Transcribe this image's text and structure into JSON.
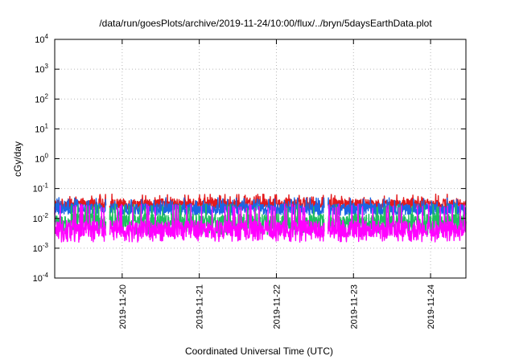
{
  "chart_data": {
    "type": "line",
    "title": "/data/run/goesPlots/archive/2019-11-24/10:00/flux/../bryn/5daysEarthData.plot",
    "xlabel": "Coordinated Universal Time (UTC)",
    "ylabel": "cGy/day",
    "yscale": "log",
    "ylim": [
      0.0001,
      10000
    ],
    "y_ticks": [
      {
        "value": 0.0001,
        "base": "10",
        "exp": "-4"
      },
      {
        "value": 0.001,
        "base": "10",
        "exp": "-3"
      },
      {
        "value": 0.01,
        "base": "10",
        "exp": "-2"
      },
      {
        "value": 0.1,
        "base": "10",
        "exp": "-1"
      },
      {
        "value": 1,
        "base": "10",
        "exp": "0"
      },
      {
        "value": 10,
        "base": "10",
        "exp": "1"
      },
      {
        "value": 100,
        "base": "10",
        "exp": "2"
      },
      {
        "value": 1000,
        "base": "10",
        "exp": "3"
      },
      {
        "value": 10000,
        "base": "10",
        "exp": "4"
      }
    ],
    "xlim": [
      "2019-11-19T03:00",
      "2019-11-24T11:00"
    ],
    "x_ticks": [
      "2019-11-20",
      "2019-11-21",
      "2019-11-22",
      "2019-11-23",
      "2019-11-24"
    ],
    "grid": true,
    "data_gaps": [
      [
        "2019-11-19T19:00",
        "2019-11-19T20:00"
      ],
      [
        "2019-11-22T15:00",
        "2019-11-22T16:00"
      ]
    ],
    "series": [
      {
        "color": "#e41a1c",
        "base": 0.03,
        "spike": 0.065,
        "noise": 0.35,
        "dips": false
      },
      {
        "color": "#1a66e4",
        "base": 0.02,
        "spike": 0.05,
        "noise": 0.4,
        "dips": false
      },
      {
        "color": "#1fbf5f",
        "base": 0.008,
        "spike": 0.03,
        "noise": 0.5,
        "dips": true
      },
      {
        "color": "#ff00ff",
        "base": 0.0045,
        "spike": 0.03,
        "noise": 0.55,
        "dips": true
      }
    ]
  }
}
